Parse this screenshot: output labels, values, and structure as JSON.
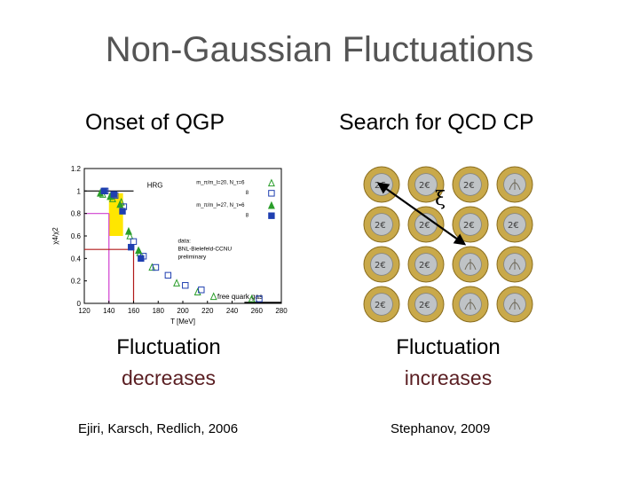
{
  "slide": {
    "title": "Non-Gaussian Fluctuations",
    "left": {
      "heading": "Onset of QGP",
      "caption_line1": "Fluctuation",
      "caption_line2": "decreases",
      "reference": "Ejiri, Karsch, Redlich, 2006"
    },
    "right": {
      "heading": "Search for QCD CP",
      "caption_line1": "Fluctuation",
      "caption_line2": "increases",
      "reference": "Stephanov, 2009",
      "xi_symbol": "ξ",
      "coin_label": "2€",
      "coin_grid": {
        "rows": 4,
        "cols": 4
      },
      "colors": {
        "coin_rim": "#c9a94a",
        "coin_center": "#bfc3c6",
        "arrow": "#000000"
      }
    },
    "colors": {
      "title": "#555555",
      "emphasis": "#5a1e22"
    }
  },
  "chart_data": {
    "type": "scatter",
    "xlabel": "T [MeV]",
    "ylabel": "χ4/χ2",
    "xlim": [
      120,
      280
    ],
    "ylim": [
      0,
      1.2
    ],
    "xticks": [
      "120",
      "140",
      "160",
      "180",
      "200",
      "220",
      "240",
      "260",
      "280"
    ],
    "yticks": [
      "0",
      "0.2",
      "0.4",
      "0.6",
      "0.8",
      "1",
      "1.2"
    ],
    "annotations": {
      "hrg": "HRG",
      "free_gas": "free quark gas",
      "legend_line1": "m_π/m_l=20, N_τ=6",
      "legend_line2": "8",
      "legend_line3": "m_π/m_l=27, N_τ=6",
      "legend_line4": "8",
      "data_line1": "data:",
      "data_line2": "BNL-Bielefeld-CCNU",
      "data_line3": "preliminary"
    },
    "hrg_value": 1.0,
    "free_gas_value": 0.0,
    "highlight_band": [
      140,
      150
    ],
    "vertical_markers": [
      140,
      160
    ],
    "horizontal_markers": [
      0.8,
      0.48
    ],
    "series": [
      {
        "name": "m_π/m_l=20, N_τ=6",
        "marker": "triangle-open",
        "color": "#2a9d2a",
        "x": [
          135,
          143,
          150,
          157,
          165,
          175,
          195,
          212,
          225,
          256
        ],
        "y": [
          0.97,
          0.93,
          0.9,
          0.6,
          0.45,
          0.32,
          0.18,
          0.1,
          0.06,
          0.04
        ]
      },
      {
        "name": "8",
        "marker": "square-open",
        "color": "#1f3fb0",
        "x": [
          137,
          145,
          152,
          160,
          168,
          178,
          188,
          202,
          215,
          262
        ],
        "y": [
          1.0,
          0.96,
          0.86,
          0.55,
          0.42,
          0.32,
          0.25,
          0.16,
          0.12,
          0.04
        ]
      },
      {
        "name": "m_π/m_l=27, N_τ=6",
        "marker": "triangle-filled",
        "color": "#2a9d2a",
        "x": [
          133,
          141,
          149,
          156,
          164
        ],
        "y": [
          0.98,
          0.95,
          0.88,
          0.64,
          0.47
        ]
      },
      {
        "name": "8",
        "marker": "square-filled",
        "color": "#1f3fb0",
        "x": [
          136,
          144,
          151,
          158,
          166
        ],
        "y": [
          1.0,
          0.97,
          0.82,
          0.5,
          0.4
        ]
      }
    ]
  }
}
